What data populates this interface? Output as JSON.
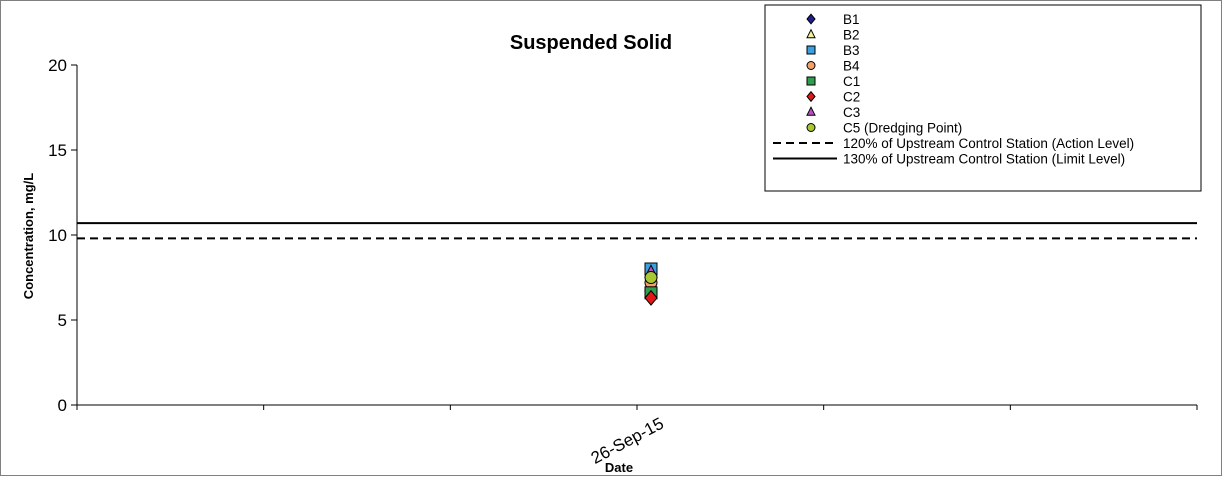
{
  "chart_data": {
    "type": "scatter",
    "title": "Suspended Solid",
    "xlabel": "Date",
    "ylabel": "Concentration, mg/L",
    "ylim": [
      0,
      20
    ],
    "yticks": [
      0,
      5,
      10,
      15,
      20
    ],
    "categories": [
      "26-Sep-15"
    ],
    "category_index": 3,
    "category_slots": 6,
    "grid": false,
    "legend_position": "top-right",
    "series": [
      {
        "name": "B1",
        "marker": "diamond",
        "color": "#1f1f8f",
        "values": [
          6.8
        ]
      },
      {
        "name": "B2",
        "marker": "triangle",
        "color": "#f2f29a",
        "values": [
          7.0
        ]
      },
      {
        "name": "B3",
        "marker": "square",
        "color": "#3aa0e0",
        "values": [
          8.0
        ]
      },
      {
        "name": "B4",
        "marker": "circle",
        "color": "#f5a06a",
        "values": [
          7.2
        ]
      },
      {
        "name": "C1",
        "marker": "square",
        "color": "#2e9e4f",
        "values": [
          6.6
        ]
      },
      {
        "name": "C2",
        "marker": "diamond",
        "color": "#e01818",
        "values": [
          6.3
        ]
      },
      {
        "name": "C3",
        "marker": "triangle",
        "color": "#b84fc0",
        "values": [
          7.8
        ]
      },
      {
        "name": "C5 (Dredging Point)",
        "marker": "circle",
        "color": "#a8c832",
        "values": [
          7.5
        ]
      }
    ],
    "reference_lines": [
      {
        "name": "120% of Upstream Control Station (Action Level)",
        "value": 9.8,
        "style": "dashed"
      },
      {
        "name": "130% of Upstream Control Station (Limit Level)",
        "value": 10.7,
        "style": "solid"
      }
    ]
  }
}
